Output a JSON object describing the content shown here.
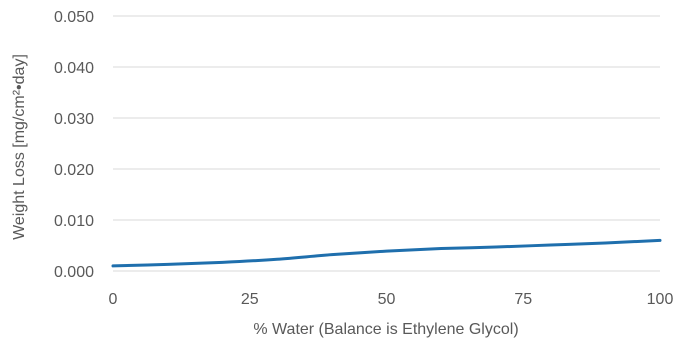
{
  "chart_data": {
    "type": "line",
    "title": "",
    "xlabel": "% Water (Balance is Ethylene Glycol)",
    "ylabel": "Weight Loss [mg/cm²•day]",
    "xlim": [
      0,
      100
    ],
    "ylim": [
      0,
      0.05
    ],
    "x_ticks": [
      "0",
      "25",
      "50",
      "75",
      "100"
    ],
    "y_ticks": [
      "0.000",
      "0.010",
      "0.020",
      "0.030",
      "0.040",
      "0.050"
    ],
    "grid": true,
    "series": [
      {
        "color": "#1f6fad",
        "x": [
          0,
          10,
          20,
          30,
          40,
          50,
          60,
          70,
          80,
          90,
          100
        ],
        "y": [
          0.001,
          0.0013,
          0.0017,
          0.0023,
          0.0032,
          0.0039,
          0.0044,
          0.0047,
          0.0051,
          0.0055,
          0.006
        ]
      }
    ]
  }
}
